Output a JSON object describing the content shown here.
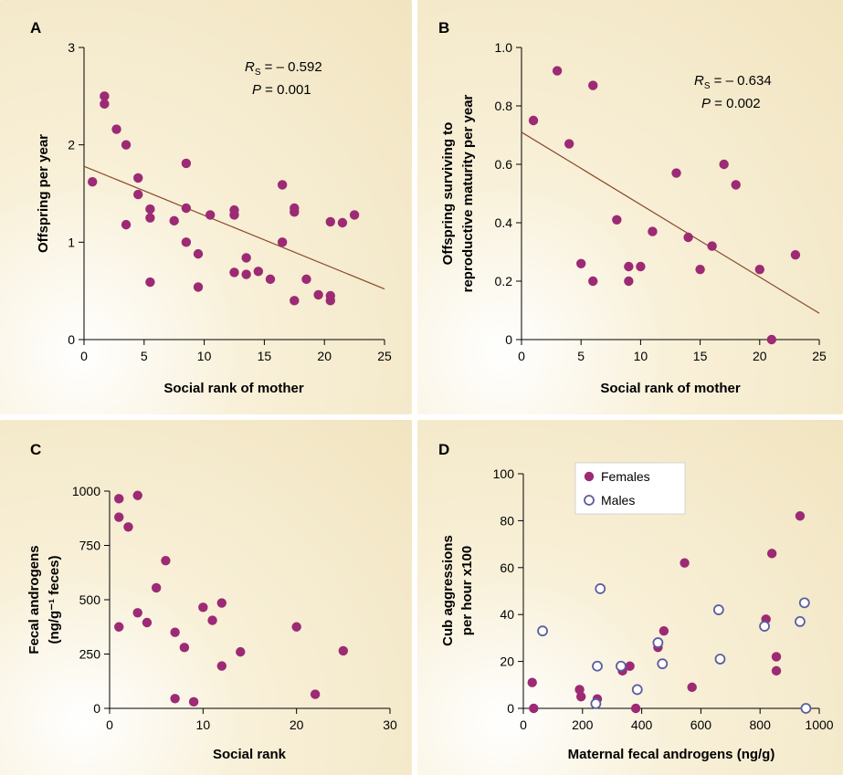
{
  "colors": {
    "female": "#9c2a74",
    "male": "#5b5e9e",
    "trend": "#8a4a2a",
    "axis": "#000000"
  },
  "chart_data": [
    {
      "id": "A",
      "panel_label": "A",
      "type": "scatter",
      "xlabel": "Social rank of mother",
      "ylabel": "Offspring per year",
      "xlim": [
        0,
        25
      ],
      "ylim": [
        0,
        3
      ],
      "xticks": [
        0,
        5,
        10,
        15,
        20,
        25
      ],
      "yticks": [
        0,
        1,
        2,
        3
      ],
      "annotation": {
        "rs_label": "R",
        "rs_sub": "S",
        "rs_value": " = – 0.592",
        "p_label": "P",
        "p_value": " = 0.001"
      },
      "trend": {
        "x0": 0,
        "y0": 1.78,
        "x1": 25,
        "y1": 0.52
      },
      "series": [
        {
          "points": [
            [
              0.7,
              1.62
            ],
            [
              1.7,
              2.5
            ],
            [
              1.7,
              2.42
            ],
            [
              2.7,
              2.16
            ],
            [
              3.5,
              2.0
            ],
            [
              3.5,
              1.18
            ],
            [
              4.5,
              1.66
            ],
            [
              4.5,
              1.49
            ],
            [
              5.5,
              1.34
            ],
            [
              5.5,
              1.25
            ],
            [
              5.5,
              0.59
            ],
            [
              7.5,
              1.22
            ],
            [
              8.5,
              1.81
            ],
            [
              8.5,
              1.35
            ],
            [
              8.5,
              1.0
            ],
            [
              9.5,
              0.88
            ],
            [
              9.5,
              0.54
            ],
            [
              10.5,
              1.28
            ],
            [
              12.5,
              1.33
            ],
            [
              12.5,
              1.28
            ],
            [
              12.5,
              0.69
            ],
            [
              13.5,
              0.84
            ],
            [
              13.5,
              0.67
            ],
            [
              14.5,
              0.7
            ],
            [
              15.5,
              0.62
            ],
            [
              16.5,
              1.59
            ],
            [
              16.5,
              1.0
            ],
            [
              17.5,
              1.35
            ],
            [
              17.5,
              1.31
            ],
            [
              17.5,
              0.4
            ],
            [
              18.5,
              0.62
            ],
            [
              19.5,
              0.46
            ],
            [
              20.5,
              1.21
            ],
            [
              20.5,
              0.45
            ],
            [
              20.5,
              0.4
            ],
            [
              21.5,
              1.2
            ],
            [
              22.5,
              1.28
            ]
          ]
        }
      ]
    },
    {
      "id": "B",
      "panel_label": "B",
      "type": "scatter",
      "xlabel": "Social rank of mother",
      "ylabel_lines": [
        "Offspring surviving to",
        "reproductive maturity per year"
      ],
      "xlim": [
        0,
        25
      ],
      "ylim": [
        0,
        1.0
      ],
      "xticks": [
        0,
        5,
        10,
        15,
        20,
        25
      ],
      "yticks": [
        "0",
        "0.2",
        "0.4",
        "0.6",
        "0.8",
        "1.0"
      ],
      "annotation": {
        "rs_label": "R",
        "rs_sub": "S",
        "rs_value": " = – 0.634",
        "p_label": "P",
        "p_value": " = 0.002"
      },
      "trend": {
        "x0": 0,
        "y0": 0.71,
        "x1": 25,
        "y1": 0.09
      },
      "series": [
        {
          "points": [
            [
              1.0,
              0.75
            ],
            [
              3.0,
              0.92
            ],
            [
              4.0,
              0.67
            ],
            [
              5.0,
              0.26
            ],
            [
              6.0,
              0.87
            ],
            [
              6.0,
              0.2
            ],
            [
              8.0,
              0.41
            ],
            [
              9.0,
              0.25
            ],
            [
              9.0,
              0.2
            ],
            [
              10.0,
              0.25
            ],
            [
              11.0,
              0.37
            ],
            [
              13.0,
              0.57
            ],
            [
              14.0,
              0.35
            ],
            [
              15.0,
              0.24
            ],
            [
              16.0,
              0.32
            ],
            [
              17.0,
              0.6
            ],
            [
              18.0,
              0.53
            ],
            [
              20.0,
              0.24
            ],
            [
              21.0,
              0.0
            ],
            [
              23.0,
              0.29
            ]
          ]
        }
      ]
    },
    {
      "id": "C",
      "panel_label": "C",
      "type": "scatter",
      "xlabel": "Social rank",
      "ylabel_lines": [
        "Fecal androgens",
        "(ng/g⁻¹ feces)"
      ],
      "xlim": [
        0,
        30
      ],
      "ylim": [
        0,
        1000
      ],
      "xticks": [
        0,
        10,
        20,
        30
      ],
      "yticks": [
        0,
        250,
        500,
        750,
        1000
      ],
      "series": [
        {
          "points": [
            [
              1,
              965
            ],
            [
              1,
              880
            ],
            [
              1,
              375
            ],
            [
              2,
              835
            ],
            [
              3,
              980
            ],
            [
              3,
              440
            ],
            [
              4,
              395
            ],
            [
              5,
              555
            ],
            [
              6,
              680
            ],
            [
              7,
              350
            ],
            [
              7,
              45
            ],
            [
              8,
              280
            ],
            [
              9,
              30
            ],
            [
              10,
              465
            ],
            [
              11,
              405
            ],
            [
              12,
              485
            ],
            [
              12,
              195
            ],
            [
              14,
              260
            ],
            [
              20,
              375
            ],
            [
              22,
              65
            ],
            [
              25,
              265
            ]
          ]
        }
      ]
    },
    {
      "id": "D",
      "panel_label": "D",
      "type": "scatter",
      "xlabel": "Maternal fecal androgens (ng/g)",
      "ylabel_lines": [
        "Cub aggressions",
        "per hour x100"
      ],
      "xlim": [
        0,
        1000
      ],
      "ylim": [
        0,
        100
      ],
      "xticks": [
        0,
        200,
        400,
        600,
        800,
        1000
      ],
      "yticks": [
        0,
        20,
        40,
        60,
        80,
        100
      ],
      "legend": [
        {
          "name": "Females"
        },
        {
          "name": "Males"
        }
      ],
      "series": [
        {
          "name": "Females",
          "filled": true,
          "points": [
            [
              30,
              11
            ],
            [
              35,
              0
            ],
            [
              190,
              8
            ],
            [
              195,
              5
            ],
            [
              250,
              4
            ],
            [
              335,
              16
            ],
            [
              360,
              18
            ],
            [
              380,
              0
            ],
            [
              455,
              26
            ],
            [
              475,
              33
            ],
            [
              545,
              62
            ],
            [
              570,
              9
            ],
            [
              820,
              38
            ],
            [
              840,
              66
            ],
            [
              855,
              22
            ],
            [
              855,
              16
            ],
            [
              935,
              82
            ]
          ]
        },
        {
          "name": "Males",
          "filled": false,
          "points": [
            [
              65,
              33
            ],
            [
              245,
              2
            ],
            [
              250,
              18
            ],
            [
              260,
              51
            ],
            [
              330,
              18
            ],
            [
              385,
              8
            ],
            [
              455,
              28
            ],
            [
              470,
              19
            ],
            [
              660,
              42
            ],
            [
              665,
              21
            ],
            [
              815,
              35
            ],
            [
              935,
              37
            ],
            [
              950,
              45
            ],
            [
              955,
              0
            ]
          ]
        }
      ]
    }
  ]
}
